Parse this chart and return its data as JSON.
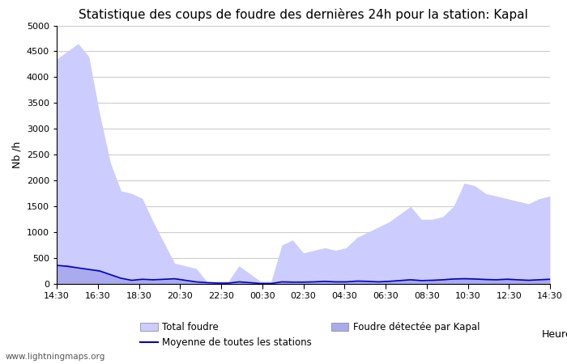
{
  "title": "Statistique des coups de foudre des dernières 24h pour la station: Kapal",
  "xlabel": "Heure",
  "ylabel": "Nb /h",
  "watermark": "www.lightningmaps.org",
  "xlim_labels": [
    "14:30",
    "16:30",
    "18:30",
    "20:30",
    "22:30",
    "00:30",
    "02:30",
    "04:30",
    "06:30",
    "08:30",
    "10:30",
    "12:30",
    "14:30"
  ],
  "ylim": [
    0,
    5000
  ],
  "yticks": [
    0,
    500,
    1000,
    1500,
    2000,
    2500,
    3000,
    3500,
    4000,
    4500,
    5000
  ],
  "total_foudre_color": "#ccccff",
  "kapal_color": "#aaaaee",
  "mean_line_color": "#0000cc",
  "background_color": "#ffffff",
  "grid_color": "#cccccc",
  "title_fontsize": 11,
  "total_foudre": [
    4350,
    4500,
    4650,
    4400,
    3300,
    2350,
    1800,
    1750,
    1650,
    1200,
    800,
    400,
    350,
    300,
    50,
    50,
    50,
    350,
    200,
    50,
    50,
    750,
    850,
    600,
    650,
    700,
    650,
    700,
    900,
    1000,
    1100,
    1200,
    1350,
    1500,
    1250,
    1250,
    1300,
    1500,
    1950,
    1900,
    1750,
    1700,
    1650,
    1600,
    1550,
    1650,
    1700
  ],
  "kapal_foudre": [
    350,
    380,
    320,
    300,
    280,
    200,
    120,
    80,
    100,
    90,
    100,
    120,
    80,
    50,
    30,
    20,
    20,
    50,
    30,
    10,
    10,
    50,
    40,
    40,
    50,
    60,
    50,
    50,
    70,
    60,
    50,
    60,
    80,
    100,
    80,
    90,
    100,
    120,
    130,
    120,
    110,
    100,
    120,
    100,
    90,
    100,
    110
  ],
  "mean_line": [
    360,
    340,
    310,
    280,
    250,
    180,
    110,
    70,
    90,
    80,
    90,
    100,
    70,
    40,
    25,
    15,
    15,
    40,
    25,
    8,
    8,
    40,
    35,
    35,
    40,
    50,
    40,
    40,
    55,
    50,
    40,
    50,
    65,
    80,
    65,
    70,
    80,
    95,
    100,
    95,
    85,
    80,
    90,
    80,
    70,
    80,
    90
  ]
}
